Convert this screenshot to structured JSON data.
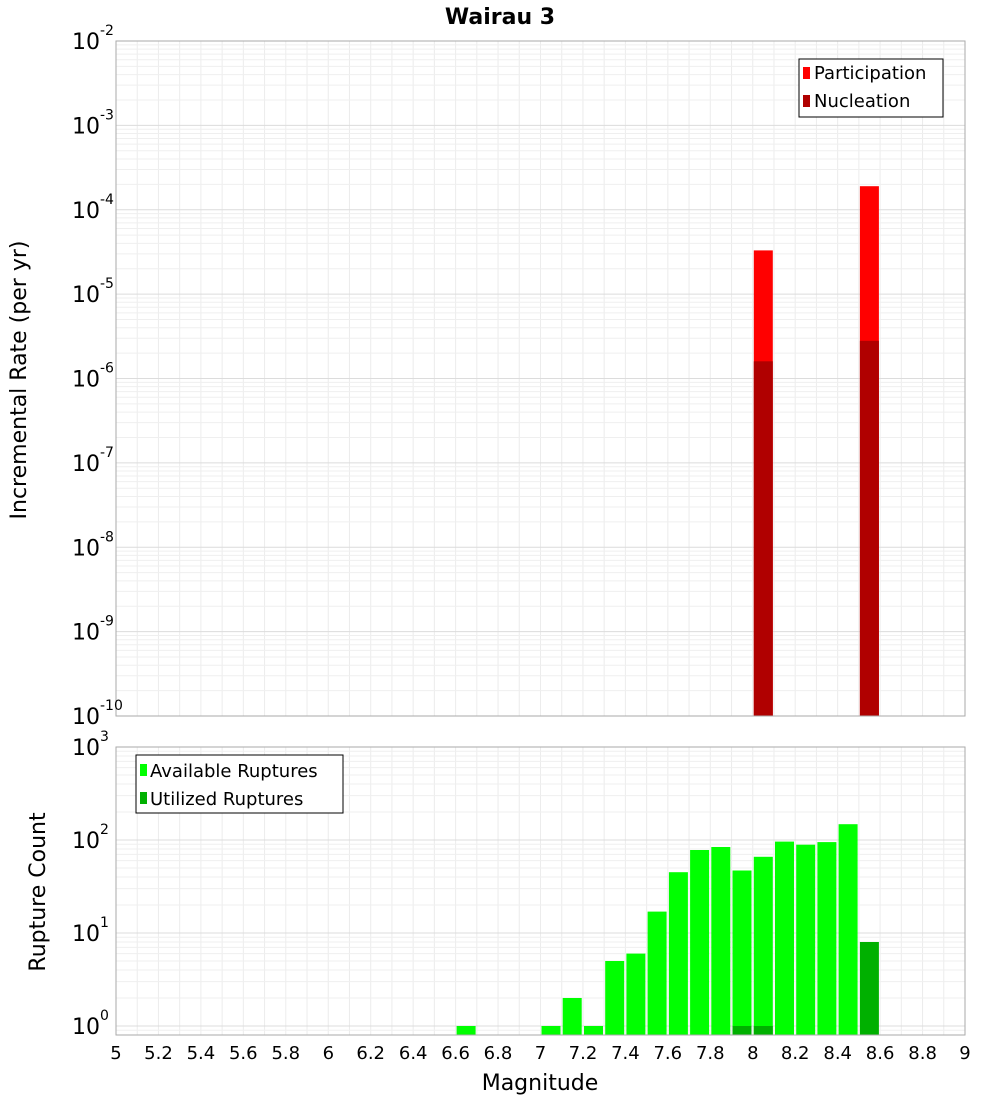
{
  "chart_data": [
    {
      "type": "bar",
      "title": "Wairau 3",
      "xlabel": "Magnitude",
      "ylabel": "Incremental Rate (per yr)",
      "yscale": "log",
      "ylim": [
        1e-10,
        0.01
      ],
      "xlim": [
        5,
        9
      ],
      "grid": true,
      "legend_position": "top-right",
      "y_ticks": [
        {
          "base": "10",
          "exp": "-10",
          "value": 1e-10
        },
        {
          "base": "10",
          "exp": "-9",
          "value": 1e-09
        },
        {
          "base": "10",
          "exp": "-8",
          "value": 1e-08
        },
        {
          "base": "10",
          "exp": "-7",
          "value": 1e-07
        },
        {
          "base": "10",
          "exp": "-6",
          "value": 1e-06
        },
        {
          "base": "10",
          "exp": "-5",
          "value": 1e-05
        },
        {
          "base": "10",
          "exp": "-4",
          "value": 0.0001
        },
        {
          "base": "10",
          "exp": "-3",
          "value": 0.001
        },
        {
          "base": "10",
          "exp": "-2",
          "value": 0.01
        }
      ],
      "series": [
        {
          "name": "Participation",
          "color": "#ff0000",
          "points": [
            {
              "x": 8.05,
              "y": 3.3e-05
            },
            {
              "x": 8.55,
              "y": 0.00019
            }
          ]
        },
        {
          "name": "Nucleation",
          "color": "#b00000",
          "points": [
            {
              "x": 8.05,
              "y": 1.6e-06
            },
            {
              "x": 8.55,
              "y": 2.8e-06
            }
          ]
        }
      ]
    },
    {
      "type": "bar",
      "xlabel": "Magnitude",
      "ylabel": "Rupture Count",
      "yscale": "log",
      "ylim": [
        0.8,
        1000
      ],
      "xlim": [
        5,
        9
      ],
      "grid": true,
      "legend_position": "top-left",
      "x_ticks": [
        "5",
        "5.2",
        "5.4",
        "5.6",
        "5.8",
        "6",
        "6.2",
        "6.4",
        "6.6",
        "6.8",
        "7",
        "7.2",
        "7.4",
        "7.6",
        "7.8",
        "8",
        "8.2",
        "8.4",
        "8.6",
        "8.8",
        "9"
      ],
      "y_ticks": [
        {
          "base": "10",
          "exp": "0",
          "value": 1
        },
        {
          "base": "10",
          "exp": "1",
          "value": 10
        },
        {
          "base": "10",
          "exp": "2",
          "value": 100
        },
        {
          "base": "10",
          "exp": "3",
          "value": 1000
        }
      ],
      "series": [
        {
          "name": "Available Ruptures",
          "color": "#00ff00",
          "points": [
            {
              "x": 6.65,
              "y": 1
            },
            {
              "x": 7.05,
              "y": 1
            },
            {
              "x": 7.15,
              "y": 2
            },
            {
              "x": 7.25,
              "y": 1
            },
            {
              "x": 7.35,
              "y": 5
            },
            {
              "x": 7.45,
              "y": 6
            },
            {
              "x": 7.55,
              "y": 17
            },
            {
              "x": 7.65,
              "y": 45
            },
            {
              "x": 7.75,
              "y": 78
            },
            {
              "x": 7.85,
              "y": 84
            },
            {
              "x": 7.95,
              "y": 47
            },
            {
              "x": 8.05,
              "y": 66
            },
            {
              "x": 8.15,
              "y": 96
            },
            {
              "x": 8.25,
              "y": 89
            },
            {
              "x": 8.35,
              "y": 95
            },
            {
              "x": 8.45,
              "y": 148
            }
          ]
        },
        {
          "name": "Utilized Ruptures",
          "color": "#00b000",
          "points": [
            {
              "x": 7.95,
              "y": 1
            },
            {
              "x": 8.05,
              "y": 1
            },
            {
              "x": 8.55,
              "y": 8
            }
          ]
        }
      ]
    }
  ]
}
